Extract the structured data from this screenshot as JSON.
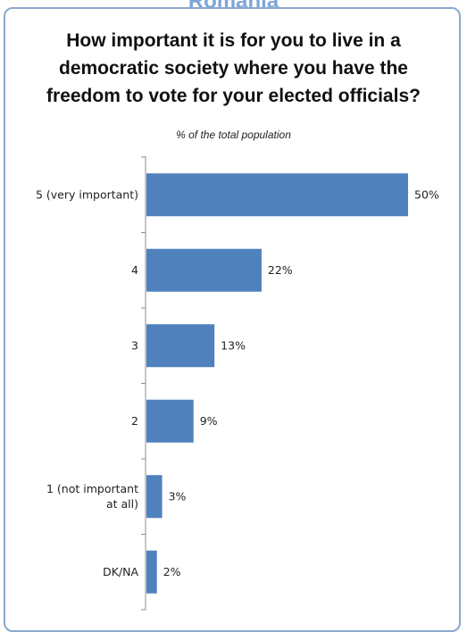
{
  "header": {
    "country": "Romania"
  },
  "chart_data": {
    "type": "bar",
    "orientation": "horizontal",
    "title": "How important it is for you to live in a democratic society where you have the freedom to vote for your elected officials?",
    "subtitle": "% of the total population",
    "categories": [
      "5 (very important)",
      "4",
      "3",
      "2",
      "1 (not important at all)",
      "DK/NA"
    ],
    "category_lines": [
      [
        "5 (very important)"
      ],
      [
        "4"
      ],
      [
        "3"
      ],
      [
        "2"
      ],
      [
        "1 (not important",
        "at all)"
      ],
      [
        "DK/NA"
      ]
    ],
    "values": [
      50,
      22,
      13,
      9,
      3,
      2
    ],
    "value_labels": [
      "50%",
      "22%",
      "13%",
      "9%",
      "3%",
      "2%"
    ],
    "xlim": [
      0,
      50
    ],
    "grid": false,
    "legend": "none",
    "colors": {
      "bar": "#4f81bd",
      "axis": "#8c8c8c",
      "frame": "#8aa9cc"
    }
  }
}
